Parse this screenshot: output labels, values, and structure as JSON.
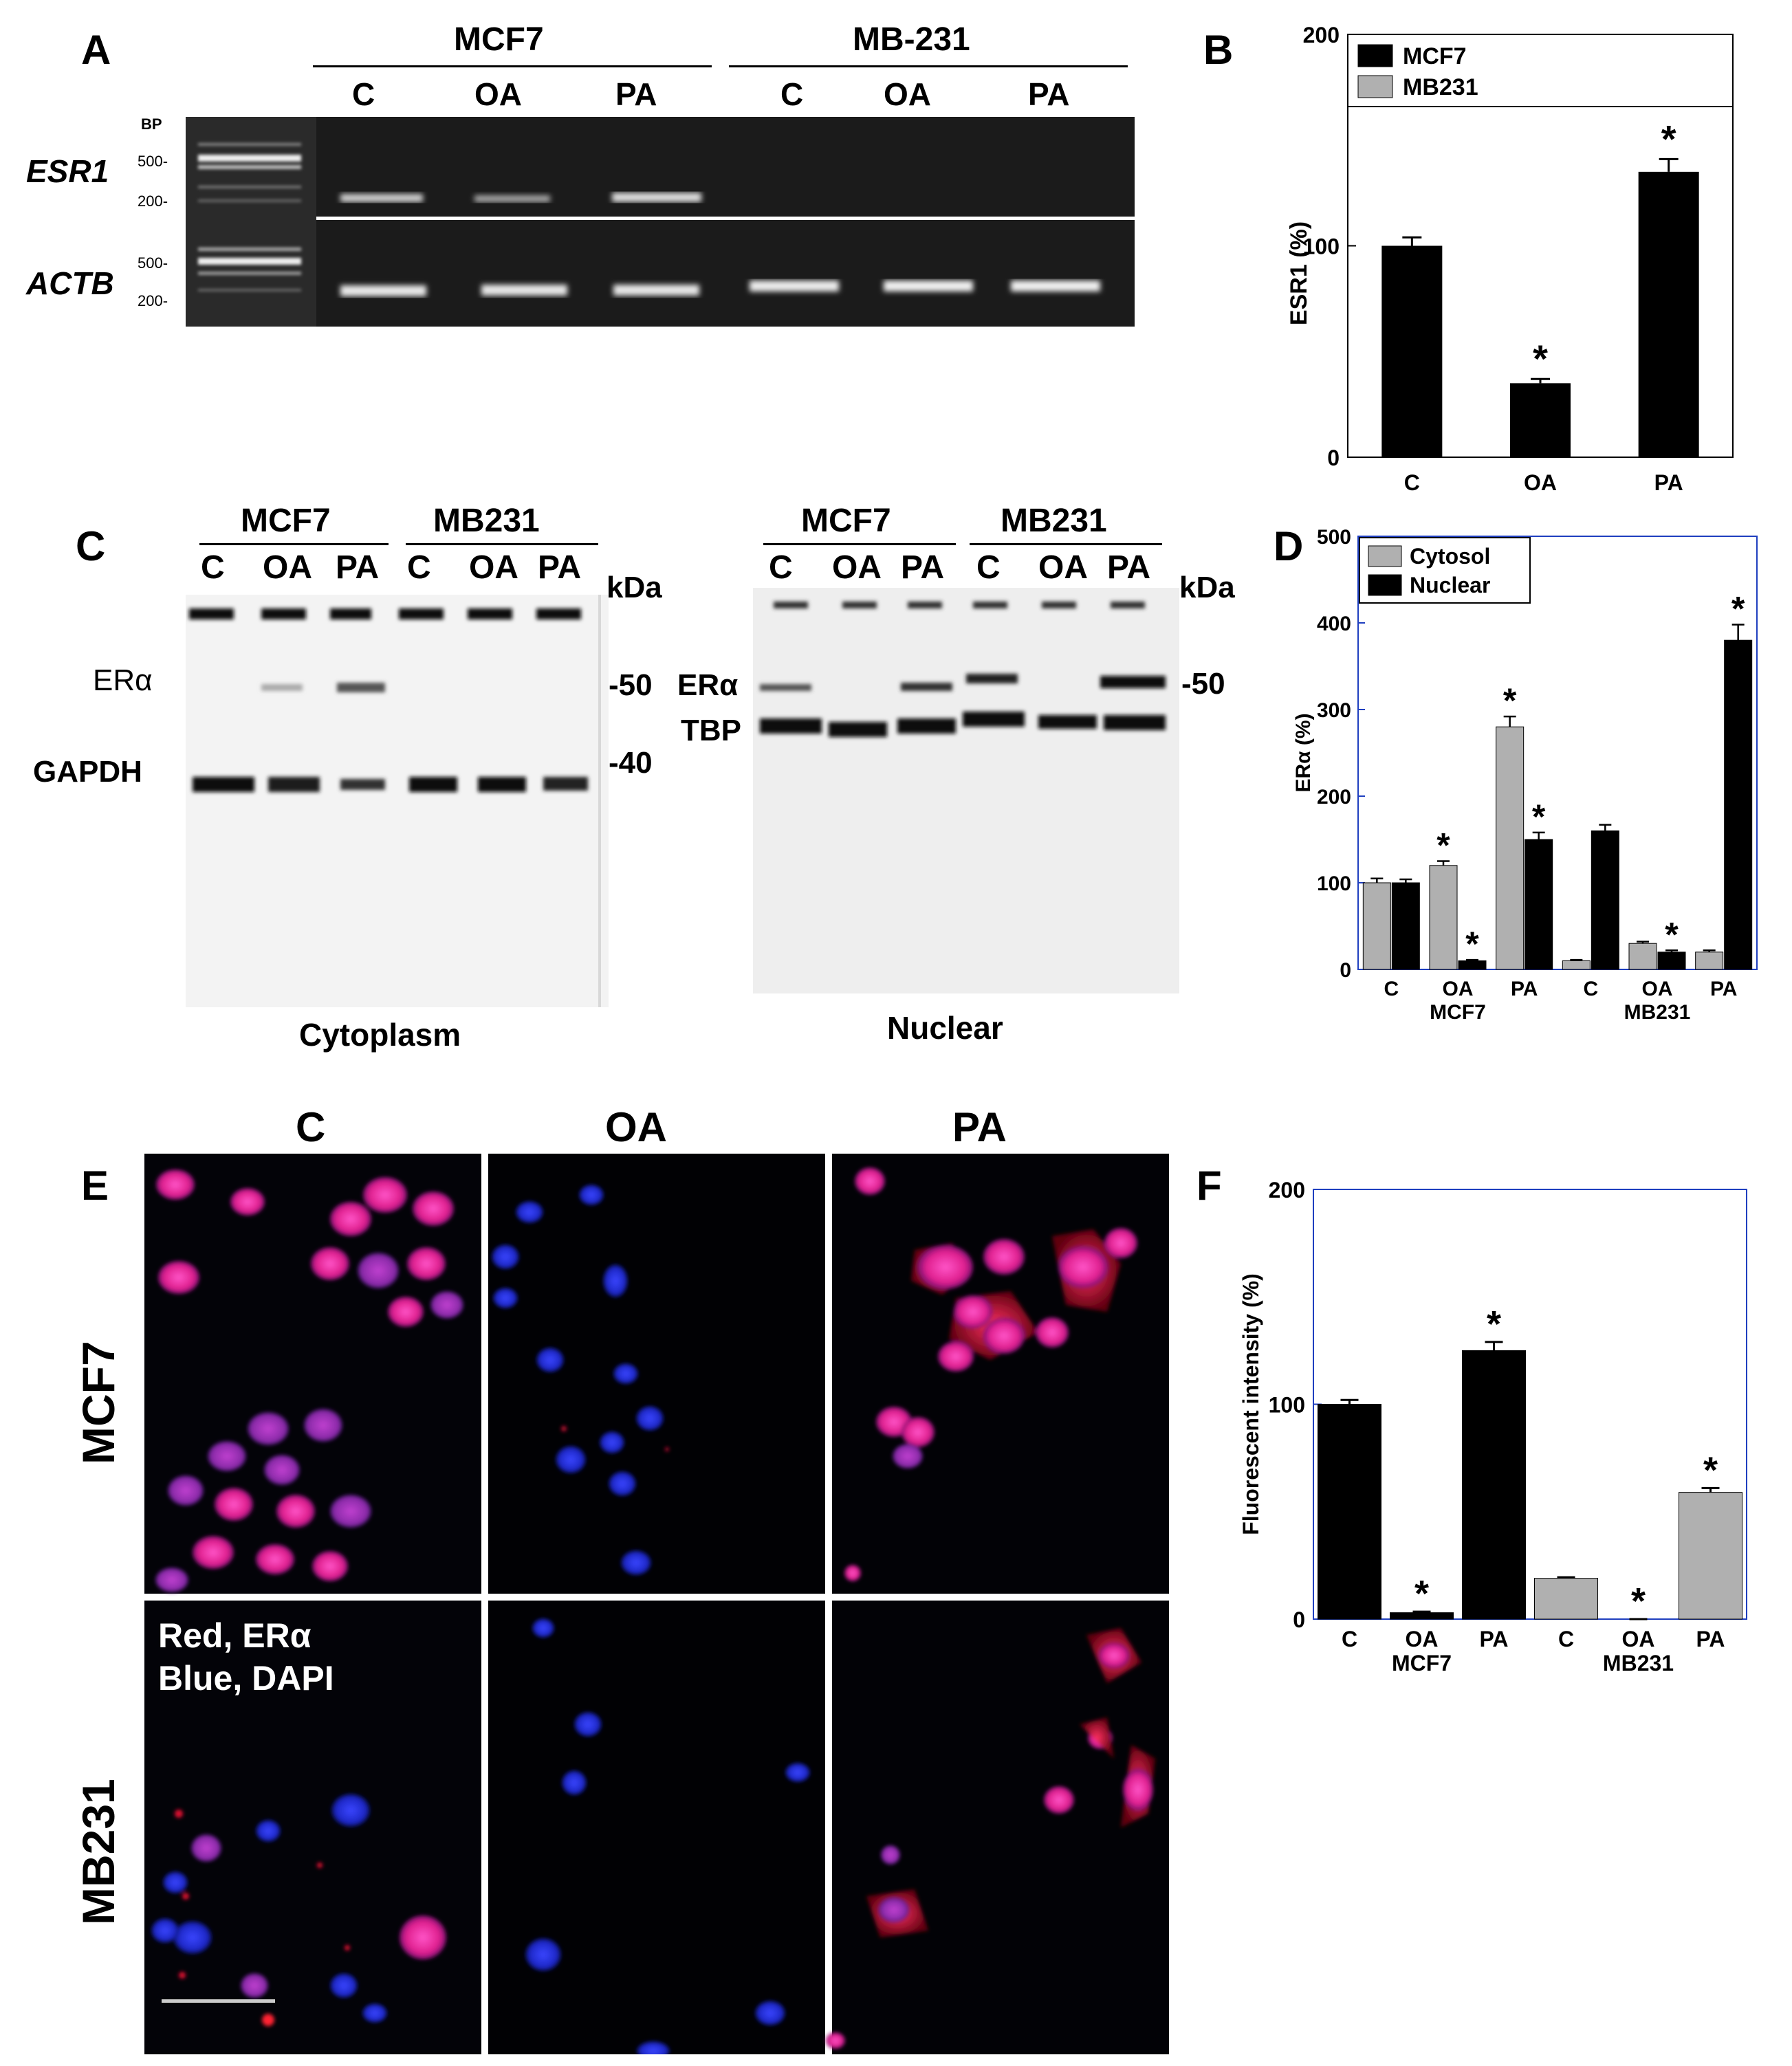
{
  "panel_letters": {
    "a": "A",
    "b": "B",
    "c": "C",
    "d": "D",
    "e": "E",
    "f": "F"
  },
  "panel_a": {
    "group_left": "MCF7",
    "group_right": "MB-231",
    "lanes": [
      "C",
      "OA",
      "PA",
      "C",
      "OA",
      "PA"
    ],
    "bp_label": "BP",
    "ladder_marks": [
      "500-",
      "200-"
    ],
    "genes": [
      "ESR1",
      "ACTB"
    ]
  },
  "panel_c": {
    "left": {
      "group_left": "MCF7",
      "group_right": "MB231",
      "lanes": [
        "C",
        "OA",
        "PA",
        "C",
        "OA",
        "PA"
      ],
      "kda": "kDa",
      "band_labels": [
        "ERα",
        "GAPDH"
      ],
      "markers": [
        "-50",
        "-40"
      ],
      "caption": "Cytoplasm"
    },
    "right": {
      "group_left": "MCF7",
      "group_right": "MB231",
      "lanes": [
        "C",
        "OA",
        "PA",
        "C",
        "OA",
        "PA"
      ],
      "kda": "kDa",
      "band_labels": [
        "ERα",
        "TBP"
      ],
      "markers": [
        "-50"
      ],
      "caption": "Nuclear"
    }
  },
  "panel_e": {
    "columns": [
      "C",
      "OA",
      "PA"
    ],
    "rows": [
      "MCF7",
      "MB231"
    ],
    "overlay_lines": [
      "Red, ERα",
      "Blue, DAPI"
    ]
  },
  "colors": {
    "black_bar": "#000000",
    "gray_bar": "#b0b0b0",
    "axis_blue": "#1f3fbf",
    "gel_bg": "#1a1a1a",
    "ladder_band": "#f2f2f2",
    "er_red": "#ff2a55",
    "dapi_blue": "#2230e0"
  },
  "chart_data": [
    {
      "panel": "B",
      "type": "bar",
      "categories": [
        "C",
        "OA",
        "PA"
      ],
      "series": [
        {
          "name": "MCF7",
          "values": [
            100,
            35,
            135
          ],
          "errors": [
            4,
            2,
            6
          ]
        }
      ],
      "legend_entries": [
        "MCF7",
        "MB231"
      ],
      "ylabel": "ESR1 (%)",
      "ylim": [
        0,
        200
      ],
      "yticks": [
        "0",
        "100",
        "200"
      ],
      "significance": [
        "",
        "*",
        "*"
      ]
    },
    {
      "panel": "D",
      "type": "bar",
      "categories": [
        "C",
        "OA",
        "PA",
        "C",
        "OA",
        "PA"
      ],
      "groups": [
        "MCF7",
        "MB231"
      ],
      "series": [
        {
          "name": "Cytosol",
          "values": [
            100,
            120,
            280,
            10,
            30,
            20
          ],
          "errors": [
            5,
            5,
            12,
            1,
            2,
            2
          ],
          "significance": [
            "",
            "*",
            "*",
            "",
            "",
            ""
          ]
        },
        {
          "name": "Nuclear",
          "values": [
            100,
            10,
            150,
            160,
            20,
            380
          ],
          "errors": [
            4,
            1,
            8,
            7,
            2,
            18
          ],
          "significance": [
            "",
            "*",
            "*",
            "",
            "*",
            "*"
          ]
        }
      ],
      "ylabel": "ERα (%)",
      "ylim": [
        0,
        500
      ],
      "yticks": [
        "0",
        "100",
        "200",
        "300",
        "400",
        "500"
      ]
    },
    {
      "panel": "F",
      "type": "bar",
      "categories": [
        "C",
        "OA",
        "PA",
        "C",
        "OA",
        "PA"
      ],
      "groups": [
        "MCF7",
        "MB231"
      ],
      "series": [
        {
          "values": [
            100,
            3,
            125,
            19,
            0,
            59
          ],
          "errors": [
            2,
            0.5,
            4,
            0.5,
            0,
            2
          ],
          "colors": [
            "#000000",
            "#000000",
            "#000000",
            "#b0b0b0",
            "#b0b0b0",
            "#b0b0b0"
          ],
          "significance": [
            "",
            "*",
            "*",
            "",
            "*",
            "*"
          ]
        }
      ],
      "ylabel": "Fluorescent intensity (%)",
      "ylim": [
        0,
        200
      ],
      "yticks": [
        "0",
        "100",
        "200"
      ]
    }
  ]
}
